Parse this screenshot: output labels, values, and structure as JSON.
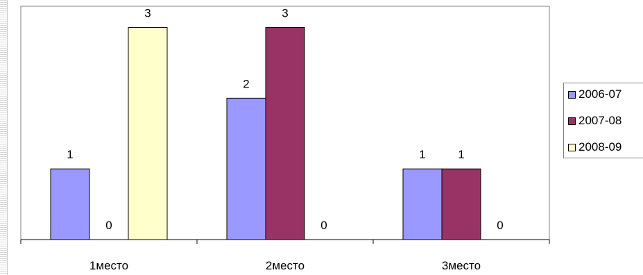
{
  "chart_data": {
    "type": "bar",
    "categories": [
      "1место",
      "2место",
      "3место"
    ],
    "series": [
      {
        "name": "2006-07",
        "values": [
          1,
          2,
          1
        ],
        "color": "#9999ff"
      },
      {
        "name": "2007-08",
        "values": [
          0,
          3,
          1
        ],
        "color": "#993366"
      },
      {
        "name": "2008-09",
        "values": [
          3,
          0,
          0
        ],
        "color": "#ffffcc"
      }
    ],
    "ylim": [
      0,
      3.3
    ],
    "grid": false,
    "data_labels": true,
    "legend_position": "right",
    "title": "",
    "xlabel": "",
    "ylabel": ""
  }
}
